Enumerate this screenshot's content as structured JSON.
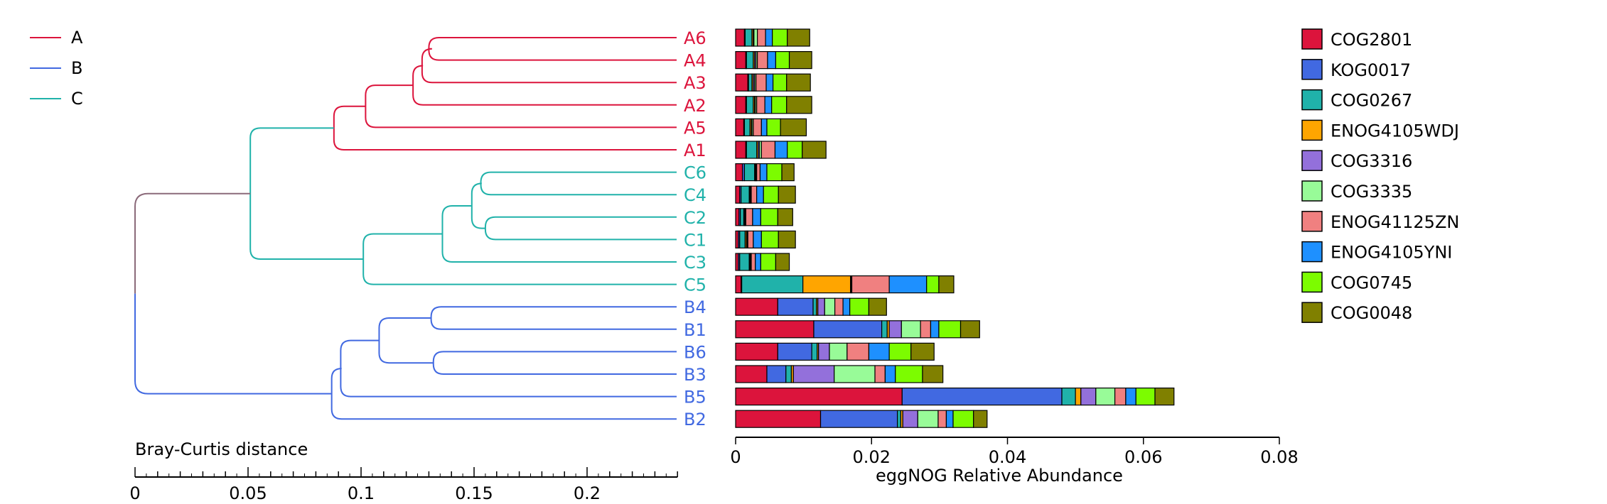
{
  "chart_data": [
    {
      "type": "dendrogram",
      "title": "",
      "xlabel": "Bray-Curtis distance",
      "xlim": [
        0,
        0.24
      ],
      "xticks": [
        0,
        0.05,
        0.1,
        0.15,
        0.2
      ],
      "xtick_labels": [
        "0",
        "0.05",
        "0.1",
        "0.15",
        "0.2"
      ],
      "legend": {
        "placement": "top-left",
        "entries": [
          {
            "label": "A",
            "color": "#dc143c"
          },
          {
            "label": "B",
            "color": "#4169e1"
          },
          {
            "label": "C",
            "color": "#20b2aa"
          }
        ]
      },
      "root_color": "#8b6a7a",
      "leaves": [
        {
          "label": "A6",
          "group": "A"
        },
        {
          "label": "A4",
          "group": "A"
        },
        {
          "label": "A3",
          "group": "A"
        },
        {
          "label": "A2",
          "group": "A"
        },
        {
          "label": "A5",
          "group": "A"
        },
        {
          "label": "A1",
          "group": "A"
        },
        {
          "label": "C6",
          "group": "C"
        },
        {
          "label": "C4",
          "group": "C"
        },
        {
          "label": "C2",
          "group": "C"
        },
        {
          "label": "C1",
          "group": "C"
        },
        {
          "label": "C3",
          "group": "C"
        },
        {
          "label": "C5",
          "group": "C"
        },
        {
          "label": "B4",
          "group": "B"
        },
        {
          "label": "B1",
          "group": "B"
        },
        {
          "label": "B6",
          "group": "B"
        },
        {
          "label": "B3",
          "group": "B"
        },
        {
          "label": "B5",
          "group": "B"
        },
        {
          "label": "B2",
          "group": "B"
        }
      ],
      "merges": [
        {
          "a": "A6",
          "b": "A4",
          "height": 0.13,
          "id": "m1",
          "group": "A"
        },
        {
          "a": "m1",
          "b": "A3",
          "height": 0.127,
          "id": "m2",
          "group": "A"
        },
        {
          "a": "m2",
          "b": "A2",
          "height": 0.123,
          "id": "m3",
          "group": "A"
        },
        {
          "a": "m3",
          "b": "A5",
          "height": 0.102,
          "id": "m4",
          "group": "A"
        },
        {
          "a": "m4",
          "b": "A1",
          "height": 0.088,
          "id": "mA",
          "group": "A"
        },
        {
          "a": "C6",
          "b": "C4",
          "height": 0.153,
          "id": "m5",
          "group": "C"
        },
        {
          "a": "C2",
          "b": "C1",
          "height": 0.155,
          "id": "m6",
          "group": "C"
        },
        {
          "a": "m5",
          "b": "m6",
          "height": 0.149,
          "id": "m7",
          "group": "C"
        },
        {
          "a": "m7",
          "b": "C3",
          "height": 0.136,
          "id": "m8",
          "group": "C"
        },
        {
          "a": "m8",
          "b": "C5",
          "height": 0.101,
          "id": "mC",
          "group": "C"
        },
        {
          "a": "mA",
          "b": "mC",
          "height": 0.051,
          "id": "mAC",
          "group": "C"
        },
        {
          "a": "B4",
          "b": "B1",
          "height": 0.131,
          "id": "m9",
          "group": "B"
        },
        {
          "a": "B6",
          "b": "B3",
          "height": 0.132,
          "id": "m10",
          "group": "B"
        },
        {
          "a": "m9",
          "b": "m10",
          "height": 0.108,
          "id": "m11",
          "group": "B"
        },
        {
          "a": "m11",
          "b": "B5",
          "height": 0.091,
          "id": "m12",
          "group": "B"
        },
        {
          "a": "m12",
          "b": "B2",
          "height": 0.087,
          "id": "mB",
          "group": "B"
        },
        {
          "a": "mAC",
          "b": "mB",
          "height": 0.0,
          "id": "root",
          "group": "root"
        }
      ]
    },
    {
      "type": "bar",
      "orientation": "horizontal",
      "stacked": true,
      "title": "",
      "xlabel": "eggNOG Relative Abundance",
      "ylabel": "",
      "xlim": [
        0,
        0.08
      ],
      "xticks": [
        0,
        0.02,
        0.04,
        0.06,
        0.08
      ],
      "xtick_labels": [
        "0",
        "0.02",
        "0.04",
        "0.06",
        "0.08"
      ],
      "legend_placement": "right",
      "categories": [
        "A6",
        "A4",
        "A3",
        "A2",
        "A5",
        "A1",
        "C6",
        "C4",
        "C2",
        "C1",
        "C3",
        "C5",
        "B4",
        "B1",
        "B6",
        "B3",
        "B5",
        "B2"
      ],
      "series": [
        {
          "name": "COG2801",
          "color": "#dc143c",
          "values": [
            0.0013,
            0.0015,
            0.0018,
            0.0015,
            0.0012,
            0.0015,
            0.001,
            0.0006,
            0.0005,
            0.0004,
            0.0004,
            0.0008,
            0.0062,
            0.0115,
            0.0062,
            0.0046,
            0.0245,
            0.0125
          ]
        },
        {
          "name": "KOG0017",
          "color": "#4169e1",
          "values": [
            0.0001,
            0.0001,
            0.0001,
            0.0001,
            0.0001,
            0.0001,
            0.0003,
            0.0002,
            0.0002,
            0.0002,
            0.0002,
            0.0001,
            0.0052,
            0.01,
            0.005,
            0.0028,
            0.0235,
            0.0113
          ]
        },
        {
          "name": "COG0267",
          "color": "#20b2aa",
          "values": [
            0.001,
            0.001,
            0.0005,
            0.001,
            0.0008,
            0.0015,
            0.0015,
            0.0012,
            0.0005,
            0.0008,
            0.0014,
            0.009,
            0.0005,
            0.0008,
            0.0008,
            0.0008,
            0.002,
            0.0005
          ]
        },
        {
          "name": "ENOG4105WDJ",
          "color": "#ffa500",
          "values": [
            0.0002,
            0.0002,
            0.0002,
            0.0002,
            0.0002,
            0.0002,
            0.0001,
            0.0001,
            0.0001,
            0.0002,
            0.0001,
            0.007,
            0.0002,
            0.0003,
            0.0002,
            0.0003,
            0.0008,
            0.0003
          ]
        },
        {
          "name": "COG3316",
          "color": "#9370db",
          "values": [
            0.0001,
            0.0002,
            0.0002,
            0.0001,
            0.0001,
            0.0002,
            0.0001,
            0.0001,
            0.0001,
            0.0001,
            0.0001,
            0.0001,
            0.001,
            0.0018,
            0.0016,
            0.006,
            0.0022,
            0.0022
          ]
        },
        {
          "name": "COG3335",
          "color": "#98fb98",
          "values": [
            0.0005,
            0.0002,
            0.0002,
            0.0002,
            0.0002,
            0.0003,
            0.0001,
            0.0001,
            0.0001,
            0.0001,
            0.0001,
            0.0001,
            0.0015,
            0.0028,
            0.0026,
            0.006,
            0.0028,
            0.003
          ]
        },
        {
          "name": "ENOG41125ZN",
          "color": "#f08080",
          "values": [
            0.0012,
            0.0015,
            0.0015,
            0.0012,
            0.0012,
            0.002,
            0.0005,
            0.0008,
            0.001,
            0.0008,
            0.0006,
            0.0055,
            0.0012,
            0.0015,
            0.0032,
            0.0015,
            0.0016,
            0.0012
          ]
        },
        {
          "name": "ENOG4105YNI",
          "color": "#1e90ff",
          "values": [
            0.001,
            0.0012,
            0.001,
            0.001,
            0.0008,
            0.0018,
            0.001,
            0.001,
            0.0012,
            0.0012,
            0.0008,
            0.0055,
            0.001,
            0.0012,
            0.003,
            0.0015,
            0.0015,
            0.001
          ]
        },
        {
          "name": "COG0745",
          "color": "#7cfc00",
          "values": [
            0.0022,
            0.002,
            0.002,
            0.0022,
            0.002,
            0.0022,
            0.0022,
            0.0022,
            0.0025,
            0.0025,
            0.0022,
            0.0018,
            0.0028,
            0.0032,
            0.0032,
            0.004,
            0.0028,
            0.003
          ]
        },
        {
          "name": "COG0048",
          "color": "#808000",
          "values": [
            0.0033,
            0.0033,
            0.0035,
            0.0037,
            0.0038,
            0.0035,
            0.0018,
            0.0025,
            0.0022,
            0.0025,
            0.002,
            0.0022,
            0.0026,
            0.0028,
            0.0034,
            0.003,
            0.0028,
            0.002
          ]
        }
      ]
    }
  ]
}
